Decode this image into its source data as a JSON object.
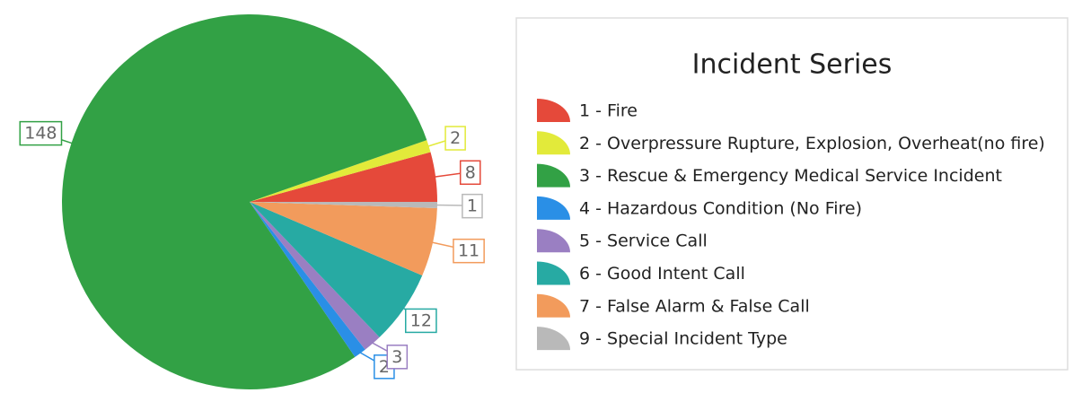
{
  "chart_data": {
    "type": "pie",
    "title": "Incident Series",
    "categories": [
      "1 - Fire",
      "2 - Overpressure Rupture, Explosion, Overheat(no fire)",
      "3 - Rescue & Emergency Medical Service Incident",
      "4 - Hazardous Condition (No Fire)",
      "5 - Service Call",
      "6 - Good Intent Call",
      "7 - False Alarm & False Call",
      "9 - Special Incident Type"
    ],
    "values": [
      8,
      2,
      148,
      2,
      3,
      12,
      11,
      1
    ],
    "colors": [
      "#e5493a",
      "#e2ea3a",
      "#32a145",
      "#2a8fe6",
      "#9a7fc2",
      "#27aaa3",
      "#f29b5c",
      "#b9b9b9"
    ],
    "legend": "right"
  }
}
